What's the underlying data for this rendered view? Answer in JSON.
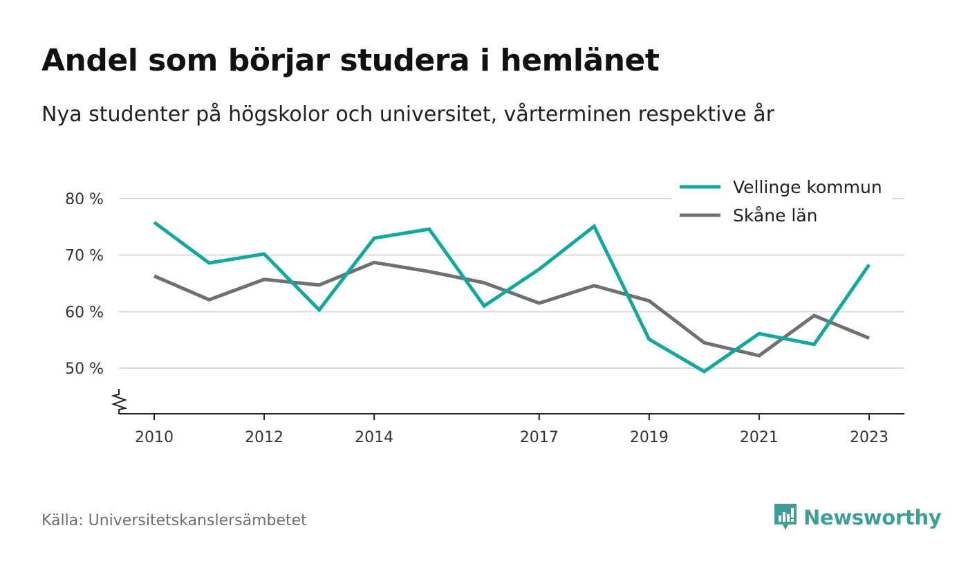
{
  "title": "Andel som börjar studera i hemlänet",
  "subtitle": "Nya studenter på högskolor och universitet, vårterminen respektive år",
  "source": "Källa: Universitetskanslersämbetet",
  "brand": {
    "name": "Newsworthy",
    "icon": "newsworthy-logo-icon",
    "color": "#3e9e98"
  },
  "chart_data": {
    "type": "line",
    "ylim": [
      42,
      80
    ],
    "yticks": [
      50,
      60,
      70,
      80
    ],
    "ytick_labels": [
      "50 %",
      "60 %",
      "70 %",
      "80 %"
    ],
    "xticks": [
      2010,
      2012,
      2014,
      2017,
      2019,
      2021,
      2023
    ],
    "xtick_labels": [
      "2010",
      "2012",
      "2014",
      "2017",
      "2019",
      "2021",
      "2023"
    ],
    "x": [
      2010,
      2011,
      2012,
      2013,
      2014,
      2015,
      2016,
      2017,
      2018,
      2019,
      2020,
      2021,
      2022,
      2023
    ],
    "grid": true,
    "axis_break": true,
    "legend_position": "top-right",
    "series": [
      {
        "name": "Vellinge kommun",
        "color": "#13a89e",
        "values": [
          75.8,
          68.6,
          70.2,
          60.3,
          73.0,
          74.6,
          61.0,
          67.5,
          75.1,
          55.1,
          49.4,
          56.1,
          54.2,
          68.3
        ]
      },
      {
        "name": "Skåne län",
        "color": "#706f74",
        "values": [
          66.3,
          62.1,
          65.7,
          64.7,
          68.7,
          67.1,
          65.1,
          61.5,
          64.6,
          61.9,
          54.5,
          52.2,
          59.3,
          55.3
        ]
      }
    ]
  }
}
